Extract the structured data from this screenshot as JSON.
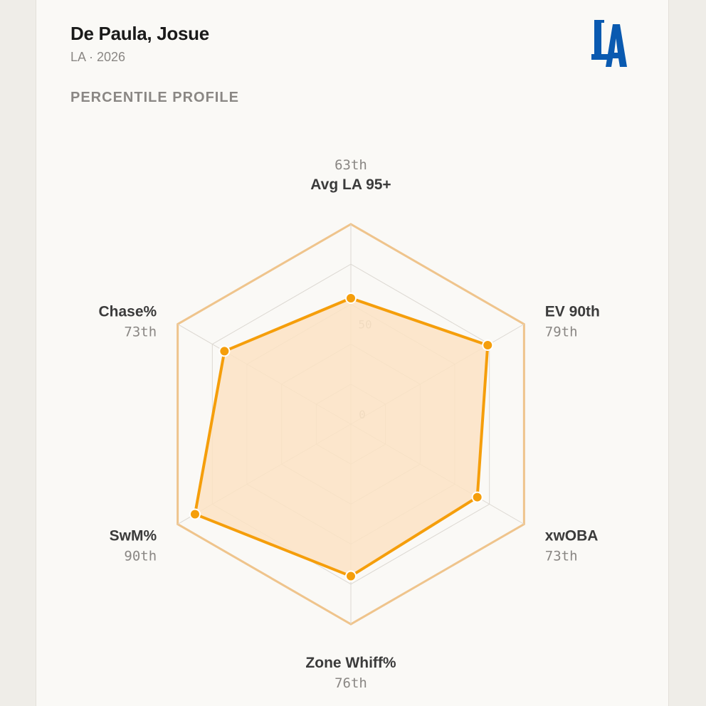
{
  "player": {
    "name": "De Paula, Josue",
    "team": "LA",
    "season": "2026",
    "subtitle": "LA · 2026"
  },
  "section_title": "PERCENTILE PROFILE",
  "logo": {
    "text": "LA",
    "color": "#0a5ab0",
    "icon": "dodgers-la-logo"
  },
  "colors": {
    "accent": "#f59e0b",
    "fill": "#fbe3c4",
    "outer_ring": "#efc48c",
    "grid": "#dcd8d2"
  },
  "chart_data": {
    "type": "radar",
    "range": [
      0,
      100
    ],
    "ring_labels": [
      "0",
      "50"
    ],
    "axes": [
      {
        "label": "Avg LA 95+",
        "value": 63,
        "pct_label": "63th"
      },
      {
        "label": "EV 90th",
        "value": 79,
        "pct_label": "79th"
      },
      {
        "label": "xwOBA",
        "value": 73,
        "pct_label": "73th"
      },
      {
        "label": "Zone Whiff%",
        "value": 76,
        "pct_label": "76th"
      },
      {
        "label": "SwM%",
        "value": 90,
        "pct_label": "90th"
      },
      {
        "label": "Chase%",
        "value": 73,
        "pct_label": "73th"
      }
    ]
  }
}
